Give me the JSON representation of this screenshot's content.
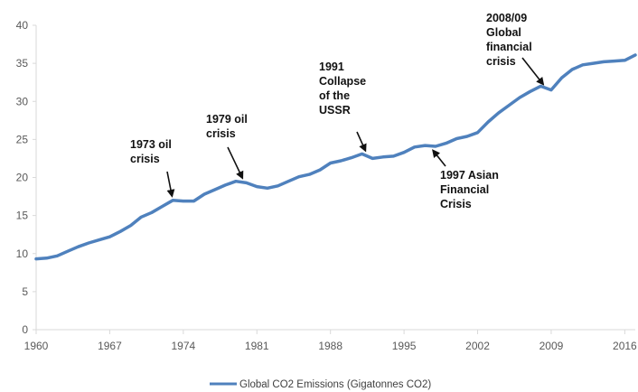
{
  "chart_data": {
    "type": "line",
    "title": "",
    "xlabel": "",
    "ylabel": "",
    "xlim": [
      1960,
      2017
    ],
    "ylim": [
      0,
      40
    ],
    "y_ticks": [
      0,
      5,
      10,
      15,
      20,
      25,
      30,
      35,
      40
    ],
    "x_ticks": [
      1960,
      1967,
      1974,
      1981,
      1988,
      1995,
      2002,
      2009,
      2016
    ],
    "grid": false,
    "legend_position": "bottom",
    "series": [
      {
        "name": "Global CO2 Emissions (Gigatonnes CO2)",
        "color": "#4f81bd",
        "x": [
          1960,
          1961,
          1962,
          1963,
          1964,
          1965,
          1966,
          1967,
          1968,
          1969,
          1970,
          1971,
          1972,
          1973,
          1974,
          1975,
          1976,
          1977,
          1978,
          1979,
          1980,
          1981,
          1982,
          1983,
          1984,
          1985,
          1986,
          1987,
          1988,
          1989,
          1990,
          1991,
          1992,
          1993,
          1994,
          1995,
          1996,
          1997,
          1998,
          1999,
          2000,
          2001,
          2002,
          2003,
          2004,
          2005,
          2006,
          2007,
          2008,
          2009,
          2010,
          2011,
          2012,
          2013,
          2014,
          2015,
          2016,
          2017
        ],
        "y": [
          9.3,
          9.4,
          9.7,
          10.3,
          10.9,
          11.4,
          11.8,
          12.2,
          12.9,
          13.7,
          14.8,
          15.4,
          16.2,
          17.0,
          16.9,
          16.9,
          17.8,
          18.4,
          19.0,
          19.5,
          19.3,
          18.8,
          18.6,
          18.9,
          19.5,
          20.1,
          20.4,
          21.0,
          21.9,
          22.2,
          22.6,
          23.1,
          22.5,
          22.7,
          22.8,
          23.3,
          24.0,
          24.2,
          24.1,
          24.5,
          25.1,
          25.4,
          25.9,
          27.3,
          28.5,
          29.5,
          30.5,
          31.3,
          32.0,
          31.5,
          33.1,
          34.2,
          34.8,
          35.0,
          35.2,
          35.3,
          35.4,
          36.1
        ]
      }
    ],
    "annotations": [
      {
        "lines": [
          "1973 oil",
          "crisis"
        ],
        "target": {
          "x": 1973,
          "y": 17.0
        }
      },
      {
        "lines": [
          "1979 oil",
          "crisis"
        ],
        "target": {
          "x": 1979.8,
          "y": 19.4
        }
      },
      {
        "lines": [
          "1991",
          "Collapse",
          "of the",
          "USSR"
        ],
        "target": {
          "x": 1991.5,
          "y": 23.0
        }
      },
      {
        "lines": [
          "1997 Asian",
          "Financial",
          "Crisis"
        ],
        "target": {
          "x": 1997.5,
          "y": 24.0
        }
      },
      {
        "lines": [
          "2008/09",
          "Global",
          "financial",
          "crisis"
        ],
        "target": {
          "x": 2008.5,
          "y": 31.8
        }
      }
    ]
  }
}
